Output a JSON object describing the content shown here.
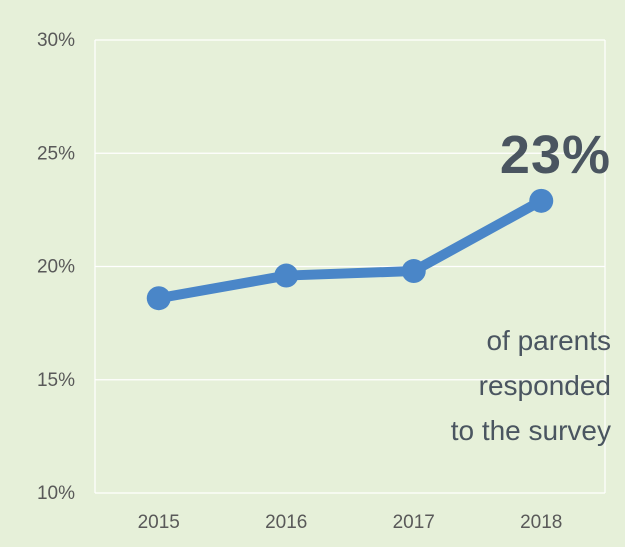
{
  "chart_data": {
    "type": "line",
    "categories": [
      "2015",
      "2016",
      "2017",
      "2018"
    ],
    "series": [
      {
        "values": [
          18.6,
          19.6,
          19.8,
          22.9
        ],
        "color": "#4a86c8"
      }
    ],
    "ylim": [
      10,
      30
    ],
    "yticks": [
      "30%",
      "25%",
      "20%",
      "15%",
      "10%"
    ],
    "ytick_values": [
      30,
      25,
      20,
      15,
      10
    ],
    "grid": true,
    "background_color": "#e6f0d9",
    "highlight": {
      "value": "23%",
      "caption_lines": [
        "of parents",
        "responded",
        "to the survey"
      ]
    }
  }
}
